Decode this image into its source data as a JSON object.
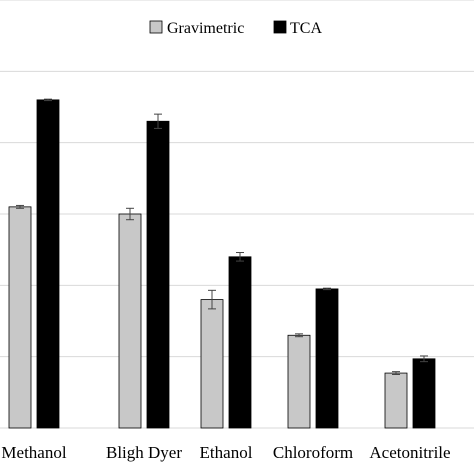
{
  "chart_data": {
    "type": "bar",
    "title": "",
    "xlabel": "",
    "ylabel": "",
    "ylim": [
      0,
      6
    ],
    "grid": true,
    "legend_position": "top",
    "categories": [
      "Methanol",
      "Bligh Dyer",
      "Ethanol",
      "Chloroform",
      "Acetonitrile"
    ],
    "series": [
      {
        "name": "Gravimetric",
        "color": "#c8c8c8",
        "values": [
          3.1,
          3.0,
          1.8,
          1.3,
          0.77
        ],
        "errors": [
          0.02,
          0.08,
          0.13,
          0.02,
          0.02
        ]
      },
      {
        "name": "TCA",
        "color": "#000000",
        "values": [
          4.6,
          4.3,
          2.4,
          1.95,
          0.97
        ],
        "errors": [
          0.01,
          0.1,
          0.06,
          0.01,
          0.04
        ]
      }
    ]
  }
}
